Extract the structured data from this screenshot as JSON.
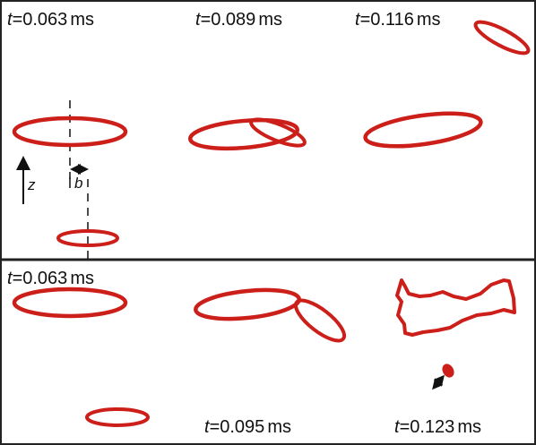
{
  "colors": {
    "ring": "#cc1f1a",
    "ring_edge": "#4a0a08",
    "frame": "#222222",
    "text": "#111111"
  },
  "top_panel": {
    "time_labels": [
      {
        "var": "t",
        "eq": "=",
        "value": "0.063",
        "unit": "ms"
      },
      {
        "var": "t",
        "eq": "=",
        "value": "0.089",
        "unit": "ms"
      },
      {
        "var": "t",
        "eq": "=",
        "value": "0.116",
        "unit": "ms"
      }
    ],
    "axis_label": "z",
    "offset_label": "b"
  },
  "bottom_panel": {
    "time_labels": [
      {
        "var": "t",
        "eq": "=",
        "value": "0.063",
        "unit": "ms"
      },
      {
        "var": "t",
        "eq": "=",
        "value": "0.095",
        "unit": "ms"
      },
      {
        "var": "t",
        "eq": "=",
        "value": "0.123",
        "unit": "ms"
      }
    ]
  }
}
